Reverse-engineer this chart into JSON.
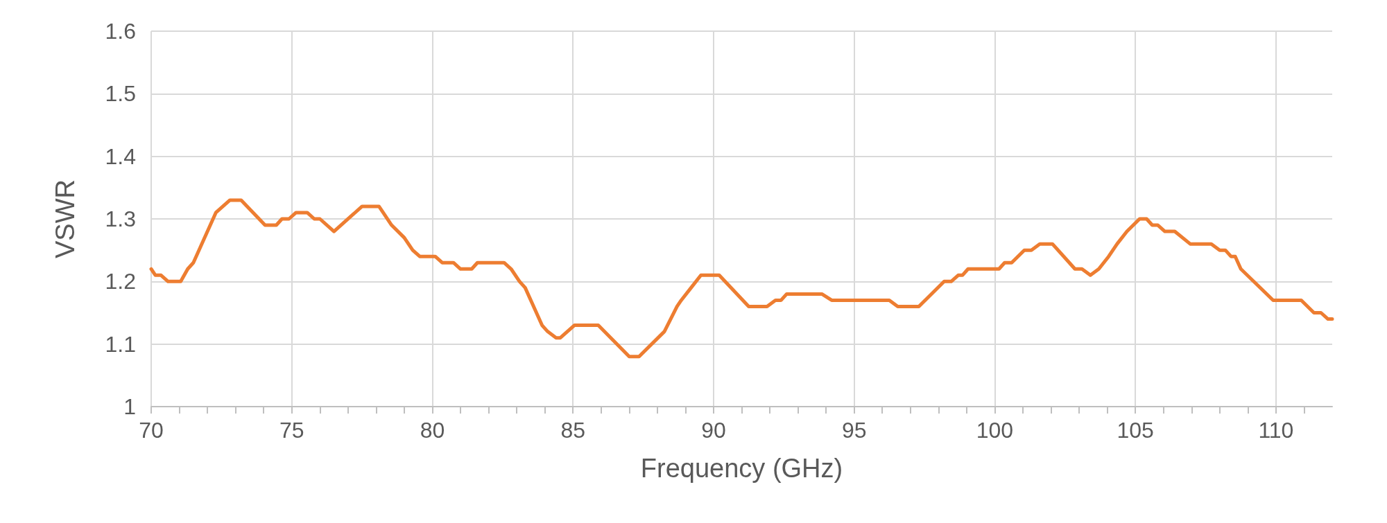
{
  "chart_data": {
    "type": "line",
    "xlabel": "Frequency (GHz)",
    "ylabel": "VSWR",
    "x": [
      70,
      70.15,
      70.35,
      70.6,
      70.85,
      71.05,
      71.3,
      71.5,
      72.3,
      72.55,
      72.8,
      73.2,
      74.05,
      74.45,
      74.65,
      74.9,
      75.15,
      75.55,
      75.8,
      76.0,
      76.5,
      77.5,
      78.1,
      78.25,
      78.55,
      79.0,
      79.3,
      79.55,
      80.1,
      80.35,
      80.75,
      81.0,
      81.4,
      81.6,
      82.55,
      82.8,
      83.1,
      83.3,
      83.9,
      84.1,
      84.4,
      84.55,
      85.05,
      85.9,
      87.0,
      87.35,
      88.25,
      88.7,
      88.85,
      89.2,
      89.55,
      90.2,
      91.25,
      91.9,
      92.2,
      92.4,
      92.6,
      93.85,
      94.2,
      96.25,
      96.55,
      97.3,
      98.2,
      98.45,
      98.7,
      98.85,
      99.05,
      100.15,
      100.35,
      100.6,
      101.05,
      101.3,
      101.6,
      102.05,
      102.85,
      103.1,
      103.4,
      103.7,
      104.05,
      104.35,
      104.7,
      105.15,
      105.4,
      105.6,
      105.8,
      106.05,
      106.4,
      106.95,
      107.7,
      108.0,
      108.2,
      108.4,
      108.55,
      108.75,
      109.9,
      110.9,
      111.35,
      111.6,
      111.85,
      112
    ],
    "series": [
      {
        "color": "#ed7d31",
        "values": [
          1.22,
          1.21,
          1.21,
          1.2,
          1.2,
          1.2,
          1.22,
          1.23,
          1.31,
          1.32,
          1.33,
          1.33,
          1.29,
          1.29,
          1.3,
          1.3,
          1.31,
          1.31,
          1.3,
          1.3,
          1.28,
          1.32,
          1.32,
          1.31,
          1.29,
          1.27,
          1.25,
          1.24,
          1.24,
          1.23,
          1.23,
          1.22,
          1.22,
          1.23,
          1.23,
          1.22,
          1.2,
          1.19,
          1.13,
          1.12,
          1.11,
          1.11,
          1.13,
          1.13,
          1.08,
          1.08,
          1.12,
          1.16,
          1.17,
          1.19,
          1.21,
          1.21,
          1.16,
          1.16,
          1.17,
          1.17,
          1.18,
          1.18,
          1.17,
          1.17,
          1.16,
          1.16,
          1.2,
          1.2,
          1.21,
          1.21,
          1.22,
          1.22,
          1.23,
          1.23,
          1.25,
          1.25,
          1.26,
          1.26,
          1.22,
          1.22,
          1.21,
          1.22,
          1.24,
          1.26,
          1.28,
          1.3,
          1.3,
          1.29,
          1.29,
          1.28,
          1.28,
          1.26,
          1.26,
          1.25,
          1.25,
          1.24,
          1.24,
          1.22,
          1.17,
          1.17,
          1.15,
          1.15,
          1.14,
          1.14
        ]
      }
    ],
    "xlim": [
      70,
      112
    ],
    "xticks": [
      70,
      {
        "value": 71,
        "label": null
      },
      {
        "value": 72,
        "label": null
      },
      {
        "value": 73,
        "label": null
      },
      {
        "value": 74,
        "label": null
      },
      75,
      {
        "value": 76,
        "label": null
      },
      {
        "value": 77,
        "label": null
      },
      {
        "value": 78,
        "label": null
      },
      {
        "value": 79,
        "label": null
      },
      80,
      {
        "value": 81,
        "label": null
      },
      {
        "value": 82,
        "label": null
      },
      {
        "value": 83,
        "label": null
      },
      {
        "value": 84,
        "label": null
      },
      85,
      {
        "value": 86,
        "label": null
      },
      {
        "value": 87,
        "label": null
      },
      {
        "value": 88,
        "label": null
      },
      {
        "value": 89,
        "label": null
      },
      90,
      {
        "value": 91,
        "label": null
      },
      {
        "value": 92,
        "label": null
      },
      {
        "value": 93,
        "label": null
      },
      {
        "value": 94,
        "label": null
      },
      95,
      {
        "value": 96,
        "label": null
      },
      {
        "value": 97,
        "label": null
      },
      {
        "value": 98,
        "label": null
      },
      {
        "value": 99,
        "label": null
      },
      100,
      {
        "value": 101,
        "label": null
      },
      {
        "value": 102,
        "label": null
      },
      {
        "value": 103,
        "label": null
      },
      {
        "value": 104,
        "label": null
      },
      105,
      {
        "value": 106,
        "label": null
      },
      {
        "value": 107,
        "label": null
      },
      {
        "value": 108,
        "label": null
      },
      {
        "value": 109,
        "label": null
      },
      110,
      {
        "value": 111,
        "label": null
      }
    ],
    "ylim": [
      1,
      1.6
    ],
    "yticks": [
      1,
      1.1,
      1.2,
      1.3,
      1.4,
      1.5,
      1.6
    ],
    "grid": true,
    "marker": "none",
    "line_style": "solid"
  }
}
